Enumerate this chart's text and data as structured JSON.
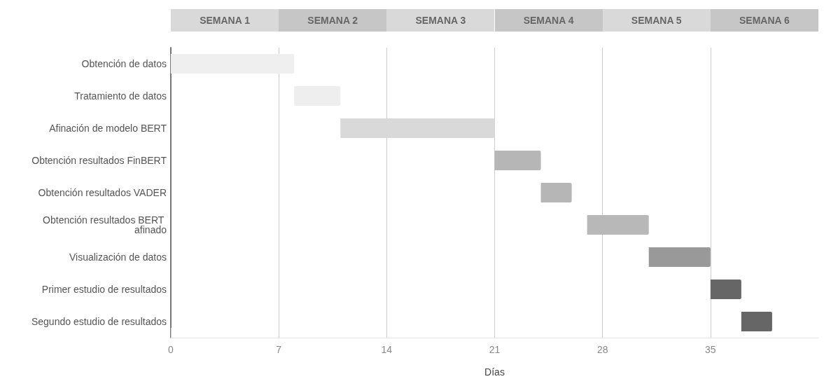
{
  "chart_data": {
    "type": "bar",
    "orientation": "horizontal",
    "xlabel": "Días",
    "categories": [
      "Obtención de datos",
      "Tratamiento de datos",
      "Afinación de modelo BERT",
      "Obtención resultados FinBERT",
      "Obtención resultados VADER",
      "Obtención resultados BERT afinado",
      "Visualización de datos",
      "Primer estudio de resultados",
      "Segundo estudio de resultados"
    ],
    "base": [
      0,
      8,
      11,
      21,
      24,
      27,
      31,
      35,
      37
    ],
    "values": [
      8,
      3,
      10,
      3,
      2,
      4,
      4,
      2,
      2
    ],
    "colors": [
      "#efefef",
      "#eeeeee",
      "#d9d9d9",
      "#b6b6b6",
      "#b6b6b6",
      "#b8b8b8",
      "#999999",
      "#666666",
      "#666666"
    ],
    "xlim": [
      0,
      42
    ],
    "xticks": [
      0,
      7,
      14,
      21,
      28,
      35
    ],
    "grid": "x",
    "annotations": [
      "SEMANA 1",
      "SEMANA 2",
      "SEMANA 3",
      "SEMANA 4",
      "SEMANA 5",
      "SEMANA 6"
    ]
  }
}
